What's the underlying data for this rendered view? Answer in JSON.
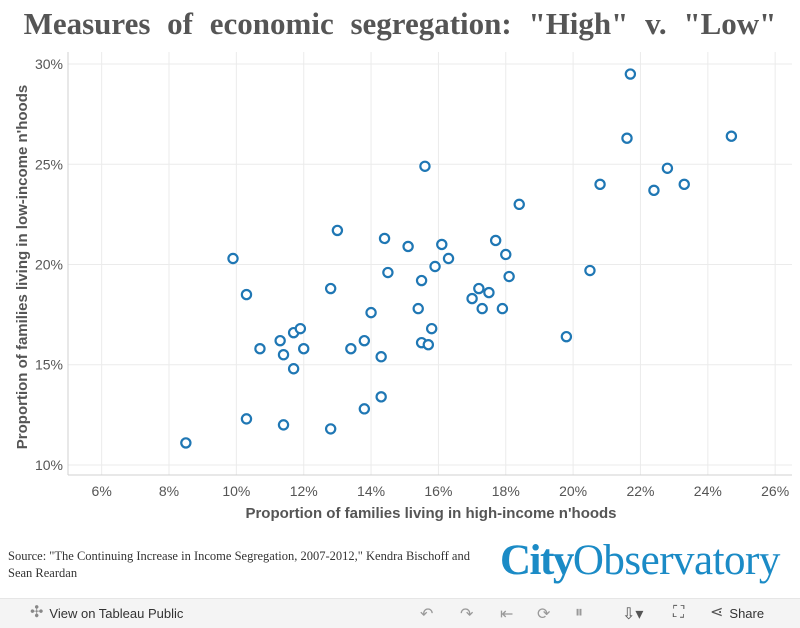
{
  "title": "Measures of economic segregation: \"High\" v. \"Low\"",
  "source_text": "Source: \"The Continuing Increase in Income Segregation, 2007-2012,\" Kendra Bischoff and Sean Reardan",
  "logo": {
    "part1": "City",
    "part2": "Observatory"
  },
  "toolbar": {
    "view_label": "View on Tableau Public",
    "share_label": "Share"
  },
  "colors": {
    "marker": "#1f77b4",
    "grid": "#ebebeb",
    "logo": "#1b8bc6"
  },
  "chart_data": {
    "type": "scatter",
    "xlabel": "Proportion of families living in high-income n'hoods",
    "ylabel": "Proportion of families living in low-income n'hoods",
    "xlim": [
      5,
      26.5
    ],
    "ylim": [
      9.5,
      30.6
    ],
    "xticks": [
      6,
      8,
      10,
      12,
      14,
      16,
      18,
      20,
      22,
      24,
      26
    ],
    "xtick_labels": [
      "6%",
      "8%",
      "10%",
      "12%",
      "14%",
      "16%",
      "18%",
      "20%",
      "22%",
      "24%",
      "26%"
    ],
    "yticks": [
      10,
      15,
      20,
      25,
      30
    ],
    "ytick_labels": [
      "10%",
      "15%",
      "20%",
      "25%",
      "30%"
    ],
    "grid": true,
    "points": [
      {
        "x": 8.5,
        "y": 11.1
      },
      {
        "x": 9.9,
        "y": 20.3
      },
      {
        "x": 10.3,
        "y": 18.5
      },
      {
        "x": 10.3,
        "y": 12.3
      },
      {
        "x": 10.7,
        "y": 15.8
      },
      {
        "x": 11.3,
        "y": 16.2
      },
      {
        "x": 11.4,
        "y": 15.5
      },
      {
        "x": 11.4,
        "y": 12.0
      },
      {
        "x": 11.7,
        "y": 16.6
      },
      {
        "x": 11.7,
        "y": 14.8
      },
      {
        "x": 11.9,
        "y": 16.8
      },
      {
        "x": 12.0,
        "y": 15.8
      },
      {
        "x": 12.8,
        "y": 18.8
      },
      {
        "x": 12.8,
        "y": 11.8
      },
      {
        "x": 13.0,
        "y": 21.7
      },
      {
        "x": 13.4,
        "y": 15.8
      },
      {
        "x": 13.8,
        "y": 16.2
      },
      {
        "x": 13.8,
        "y": 12.8
      },
      {
        "x": 14.0,
        "y": 17.6
      },
      {
        "x": 14.3,
        "y": 15.4
      },
      {
        "x": 14.3,
        "y": 13.4
      },
      {
        "x": 14.4,
        "y": 21.3
      },
      {
        "x": 14.5,
        "y": 19.6
      },
      {
        "x": 15.1,
        "y": 20.9
      },
      {
        "x": 15.4,
        "y": 17.8
      },
      {
        "x": 15.5,
        "y": 16.1
      },
      {
        "x": 15.5,
        "y": 19.2
      },
      {
        "x": 15.6,
        "y": 24.9
      },
      {
        "x": 15.7,
        "y": 16.0
      },
      {
        "x": 15.8,
        "y": 16.8
      },
      {
        "x": 15.9,
        "y": 19.9
      },
      {
        "x": 16.1,
        "y": 21.0
      },
      {
        "x": 16.3,
        "y": 20.3
      },
      {
        "x": 17.0,
        "y": 18.3
      },
      {
        "x": 17.2,
        "y": 18.8
      },
      {
        "x": 17.3,
        "y": 17.8
      },
      {
        "x": 17.5,
        "y": 18.6
      },
      {
        "x": 17.7,
        "y": 21.2
      },
      {
        "x": 17.9,
        "y": 17.8
      },
      {
        "x": 18.0,
        "y": 20.5
      },
      {
        "x": 18.1,
        "y": 19.4
      },
      {
        "x": 18.4,
        "y": 23.0
      },
      {
        "x": 19.8,
        "y": 16.4
      },
      {
        "x": 20.5,
        "y": 19.7
      },
      {
        "x": 20.8,
        "y": 24.0
      },
      {
        "x": 21.6,
        "y": 26.3
      },
      {
        "x": 21.7,
        "y": 29.5
      },
      {
        "x": 22.4,
        "y": 23.7
      },
      {
        "x": 22.8,
        "y": 24.8
      },
      {
        "x": 23.3,
        "y": 24.0
      },
      {
        "x": 24.7,
        "y": 26.4
      }
    ]
  }
}
